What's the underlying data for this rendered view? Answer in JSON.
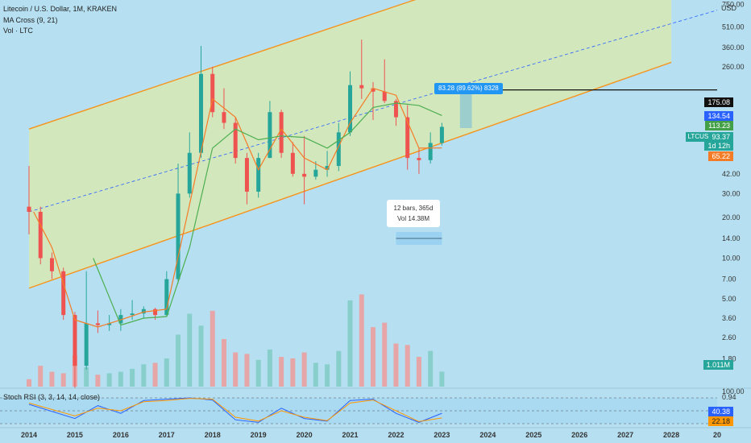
{
  "header": {
    "symbol_line": "Litecoin / U.S. Dollar, 1M, KRAKEN",
    "ma_line": "MA Cross (9, 21)",
    "vol_line": "Vol · LTC",
    "stoch_line": "Stoch RSI (3, 3, 14, 14, close)"
  },
  "price_axis": {
    "unit_label": "USD",
    "ticks": [
      750,
      510,
      360,
      260,
      42,
      30,
      20,
      14,
      10,
      7,
      5,
      3.6,
      2.6,
      1.8,
      0.94
    ],
    "tick_labels": [
      "750.00",
      "510.00",
      "360.00",
      "260.00",
      "42.00",
      "30.00",
      "20.00",
      "14.00",
      "10.00",
      "7.00",
      "5.00",
      "3.60",
      "2.60",
      "1.80",
      "0.94"
    ]
  },
  "stoch_axis": {
    "ticks": [
      "100.00"
    ]
  },
  "time_axis": {
    "labels": [
      "2014",
      "2015",
      "2016",
      "2017",
      "2018",
      "2019",
      "2020",
      "2021",
      "2022",
      "2023",
      "2024",
      "2025",
      "2026",
      "2027",
      "2028",
      "20"
    ]
  },
  "price_tags": {
    "resistance": "175.08",
    "ma_a": "134.54",
    "ma_b": "113.23",
    "symbol": "LTCUSD",
    "last": "93.37",
    "countdown": "1d 12h",
    "ma_c": "65.22",
    "volume": "1.011M",
    "k_value": "40.38",
    "d_value": "22.18"
  },
  "measure_tool": {
    "label": "83.28 (89.62%) 8328",
    "info_bars": "12 bars, 365d",
    "info_vol": "Vol 14.38M"
  },
  "colors": {
    "background": "#b6e0f1",
    "bull": "#26a69a",
    "bear": "#ef5350",
    "channel": "#f7931a",
    "channel_fill": "#d8e8b4",
    "ma_fast": "#f57c26",
    "ma_slow": "#4caf50",
    "stoch_k": "#2962ff",
    "stoch_d": "#ff9800",
    "measure": "#2196f3"
  },
  "chart_data": {
    "type": "candlestick",
    "x_unit": "year",
    "y_scale": "log",
    "y_unit": "USD",
    "ylim": [
      0.94,
      750
    ],
    "xlim": [
      2014,
      2029
    ],
    "price_series": [
      {
        "t": 2014.0,
        "o": 24,
        "h": 48,
        "l": 15,
        "c": 22
      },
      {
        "t": 2014.25,
        "o": 22,
        "h": 24,
        "l": 9,
        "c": 10
      },
      {
        "t": 2014.5,
        "o": 10,
        "h": 11,
        "l": 7,
        "c": 8
      },
      {
        "t": 2014.75,
        "o": 8,
        "h": 8.5,
        "l": 3.5,
        "c": 3.8
      },
      {
        "t": 2015.0,
        "o": 3.8,
        "h": 4,
        "l": 1.1,
        "c": 1.6
      },
      {
        "t": 2015.25,
        "o": 1.6,
        "h": 8,
        "l": 1.5,
        "c": 3.3
      },
      {
        "t": 2015.5,
        "o": 3.3,
        "h": 4.1,
        "l": 2.8,
        "c": 3.2
      },
      {
        "t": 2015.75,
        "o": 3.2,
        "h": 3.8,
        "l": 2.9,
        "c": 3.3
      },
      {
        "t": 2016.0,
        "o": 3.3,
        "h": 4.2,
        "l": 2.9,
        "c": 3.8
      },
      {
        "t": 2016.25,
        "o": 3.8,
        "h": 4.9,
        "l": 3.5,
        "c": 3.9
      },
      {
        "t": 2016.5,
        "o": 3.9,
        "h": 4.4,
        "l": 3.6,
        "c": 4.2
      },
      {
        "t": 2016.75,
        "o": 4.2,
        "h": 4.3,
        "l": 3.5,
        "c": 3.8
      },
      {
        "t": 2017.0,
        "o": 3.8,
        "h": 8,
        "l": 3.7,
        "c": 7
      },
      {
        "t": 2017.25,
        "o": 7,
        "h": 50,
        "l": 6.5,
        "c": 30
      },
      {
        "t": 2017.5,
        "o": 30,
        "h": 85,
        "l": 28,
        "c": 60
      },
      {
        "t": 2017.75,
        "o": 60,
        "h": 370,
        "l": 55,
        "c": 230
      },
      {
        "t": 2018.0,
        "o": 230,
        "h": 260,
        "l": 110,
        "c": 120
      },
      {
        "t": 2018.25,
        "o": 120,
        "h": 180,
        "l": 90,
        "c": 100
      },
      {
        "t": 2018.5,
        "o": 100,
        "h": 110,
        "l": 50,
        "c": 55
      },
      {
        "t": 2018.75,
        "o": 55,
        "h": 60,
        "l": 25,
        "c": 31
      },
      {
        "t": 2019.0,
        "o": 31,
        "h": 60,
        "l": 28,
        "c": 55
      },
      {
        "t": 2019.25,
        "o": 55,
        "h": 145,
        "l": 55,
        "c": 120
      },
      {
        "t": 2019.5,
        "o": 120,
        "h": 125,
        "l": 55,
        "c": 60
      },
      {
        "t": 2019.75,
        "o": 60,
        "h": 72,
        "l": 40,
        "c": 42
      },
      {
        "t": 2020.0,
        "o": 42,
        "h": 80,
        "l": 25,
        "c": 40
      },
      {
        "t": 2020.25,
        "o": 40,
        "h": 52,
        "l": 38,
        "c": 45
      },
      {
        "t": 2020.5,
        "o": 45,
        "h": 62,
        "l": 40,
        "c": 48
      },
      {
        "t": 2020.75,
        "o": 48,
        "h": 100,
        "l": 44,
        "c": 85
      },
      {
        "t": 2021.0,
        "o": 85,
        "h": 240,
        "l": 80,
        "c": 190
      },
      {
        "t": 2021.25,
        "o": 190,
        "h": 412,
        "l": 150,
        "c": 180
      },
      {
        "t": 2021.5,
        "o": 180,
        "h": 200,
        "l": 105,
        "c": 170
      },
      {
        "t": 2021.75,
        "o": 170,
        "h": 295,
        "l": 140,
        "c": 145
      },
      {
        "t": 2022.0,
        "o": 145,
        "h": 150,
        "l": 95,
        "c": 110
      },
      {
        "t": 2022.25,
        "o": 110,
        "h": 135,
        "l": 45,
        "c": 55
      },
      {
        "t": 2022.5,
        "o": 55,
        "h": 65,
        "l": 42,
        "c": 53
      },
      {
        "t": 2022.75,
        "o": 53,
        "h": 85,
        "l": 50,
        "c": 71
      },
      {
        "t": 2023.0,
        "o": 71,
        "h": 100,
        "l": 68,
        "c": 93.37
      }
    ],
    "ma_fast": [
      [
        2014.1,
        22
      ],
      [
        2014.5,
        12
      ],
      [
        2015.0,
        3.5
      ],
      [
        2015.5,
        3.1
      ],
      [
        2016.0,
        3.5
      ],
      [
        2016.5,
        4
      ],
      [
        2017.0,
        4.2
      ],
      [
        2017.5,
        25
      ],
      [
        2018.0,
        150
      ],
      [
        2018.5,
        110
      ],
      [
        2019.0,
        45
      ],
      [
        2019.5,
        90
      ],
      [
        2020.0,
        55
      ],
      [
        2020.5,
        45
      ],
      [
        2021.0,
        100
      ],
      [
        2021.5,
        180
      ],
      [
        2022.0,
        160
      ],
      [
        2022.5,
        65
      ],
      [
        2023.0,
        65.22
      ]
    ],
    "ma_slow": [
      [
        2015.4,
        10
      ],
      [
        2016.0,
        3.2
      ],
      [
        2016.5,
        3.6
      ],
      [
        2017.0,
        3.7
      ],
      [
        2017.5,
        12
      ],
      [
        2018.0,
        65
      ],
      [
        2018.5,
        90
      ],
      [
        2019.0,
        75
      ],
      [
        2019.5,
        80
      ],
      [
        2020.0,
        78
      ],
      [
        2020.5,
        65
      ],
      [
        2021.0,
        85
      ],
      [
        2021.5,
        130
      ],
      [
        2022.0,
        140
      ],
      [
        2022.5,
        134.54
      ],
      [
        2023.0,
        113.23
      ]
    ],
    "channel": {
      "upper": [
        [
          2014.0,
          90
        ],
        [
          2028.0,
          3500
        ]
      ],
      "lower": [
        [
          2014.0,
          6
        ],
        [
          2028.0,
          280
        ]
      ],
      "mid": [
        [
          2014.0,
          22
        ],
        [
          2029.0,
          680
        ]
      ]
    },
    "resistance_level": 175.08,
    "volume_m": [
      0.5,
      1.4,
      1.0,
      0.9,
      2.1,
      1.3,
      0.8,
      0.9,
      1.0,
      1.2,
      1.5,
      1.6,
      1.9,
      3.5,
      4.9,
      4.1,
      5.1,
      3.2,
      2.3,
      2.2,
      1.8,
      2.5,
      2.0,
      1.9,
      2.3,
      1.6,
      1.5,
      2.4,
      5.8,
      6.2,
      4.0,
      4.3,
      2.9,
      2.8,
      2.0,
      2.4,
      1.011
    ],
    "stoch_k": [
      [
        2014.0,
        75
      ],
      [
        2015.0,
        20
      ],
      [
        2015.5,
        70
      ],
      [
        2016.0,
        40
      ],
      [
        2016.5,
        90
      ],
      [
        2017.0,
        95
      ],
      [
        2017.5,
        100
      ],
      [
        2018.0,
        92
      ],
      [
        2018.5,
        15
      ],
      [
        2019.0,
        5
      ],
      [
        2019.5,
        60
      ],
      [
        2020.0,
        20
      ],
      [
        2020.5,
        10
      ],
      [
        2021.0,
        90
      ],
      [
        2021.5,
        95
      ],
      [
        2022.0,
        40
      ],
      [
        2022.5,
        5
      ],
      [
        2023.0,
        40.38
      ]
    ],
    "stoch_d": [
      [
        2014.0,
        80
      ],
      [
        2015.0,
        30
      ],
      [
        2015.5,
        60
      ],
      [
        2016.0,
        50
      ],
      [
        2016.5,
        85
      ],
      [
        2017.0,
        90
      ],
      [
        2017.5,
        98
      ],
      [
        2018.0,
        95
      ],
      [
        2018.5,
        25
      ],
      [
        2019.0,
        10
      ],
      [
        2019.5,
        50
      ],
      [
        2020.0,
        25
      ],
      [
        2020.5,
        12
      ],
      [
        2021.0,
        80
      ],
      [
        2021.5,
        92
      ],
      [
        2022.0,
        50
      ],
      [
        2022.5,
        8
      ],
      [
        2023.0,
        22.18
      ]
    ]
  }
}
